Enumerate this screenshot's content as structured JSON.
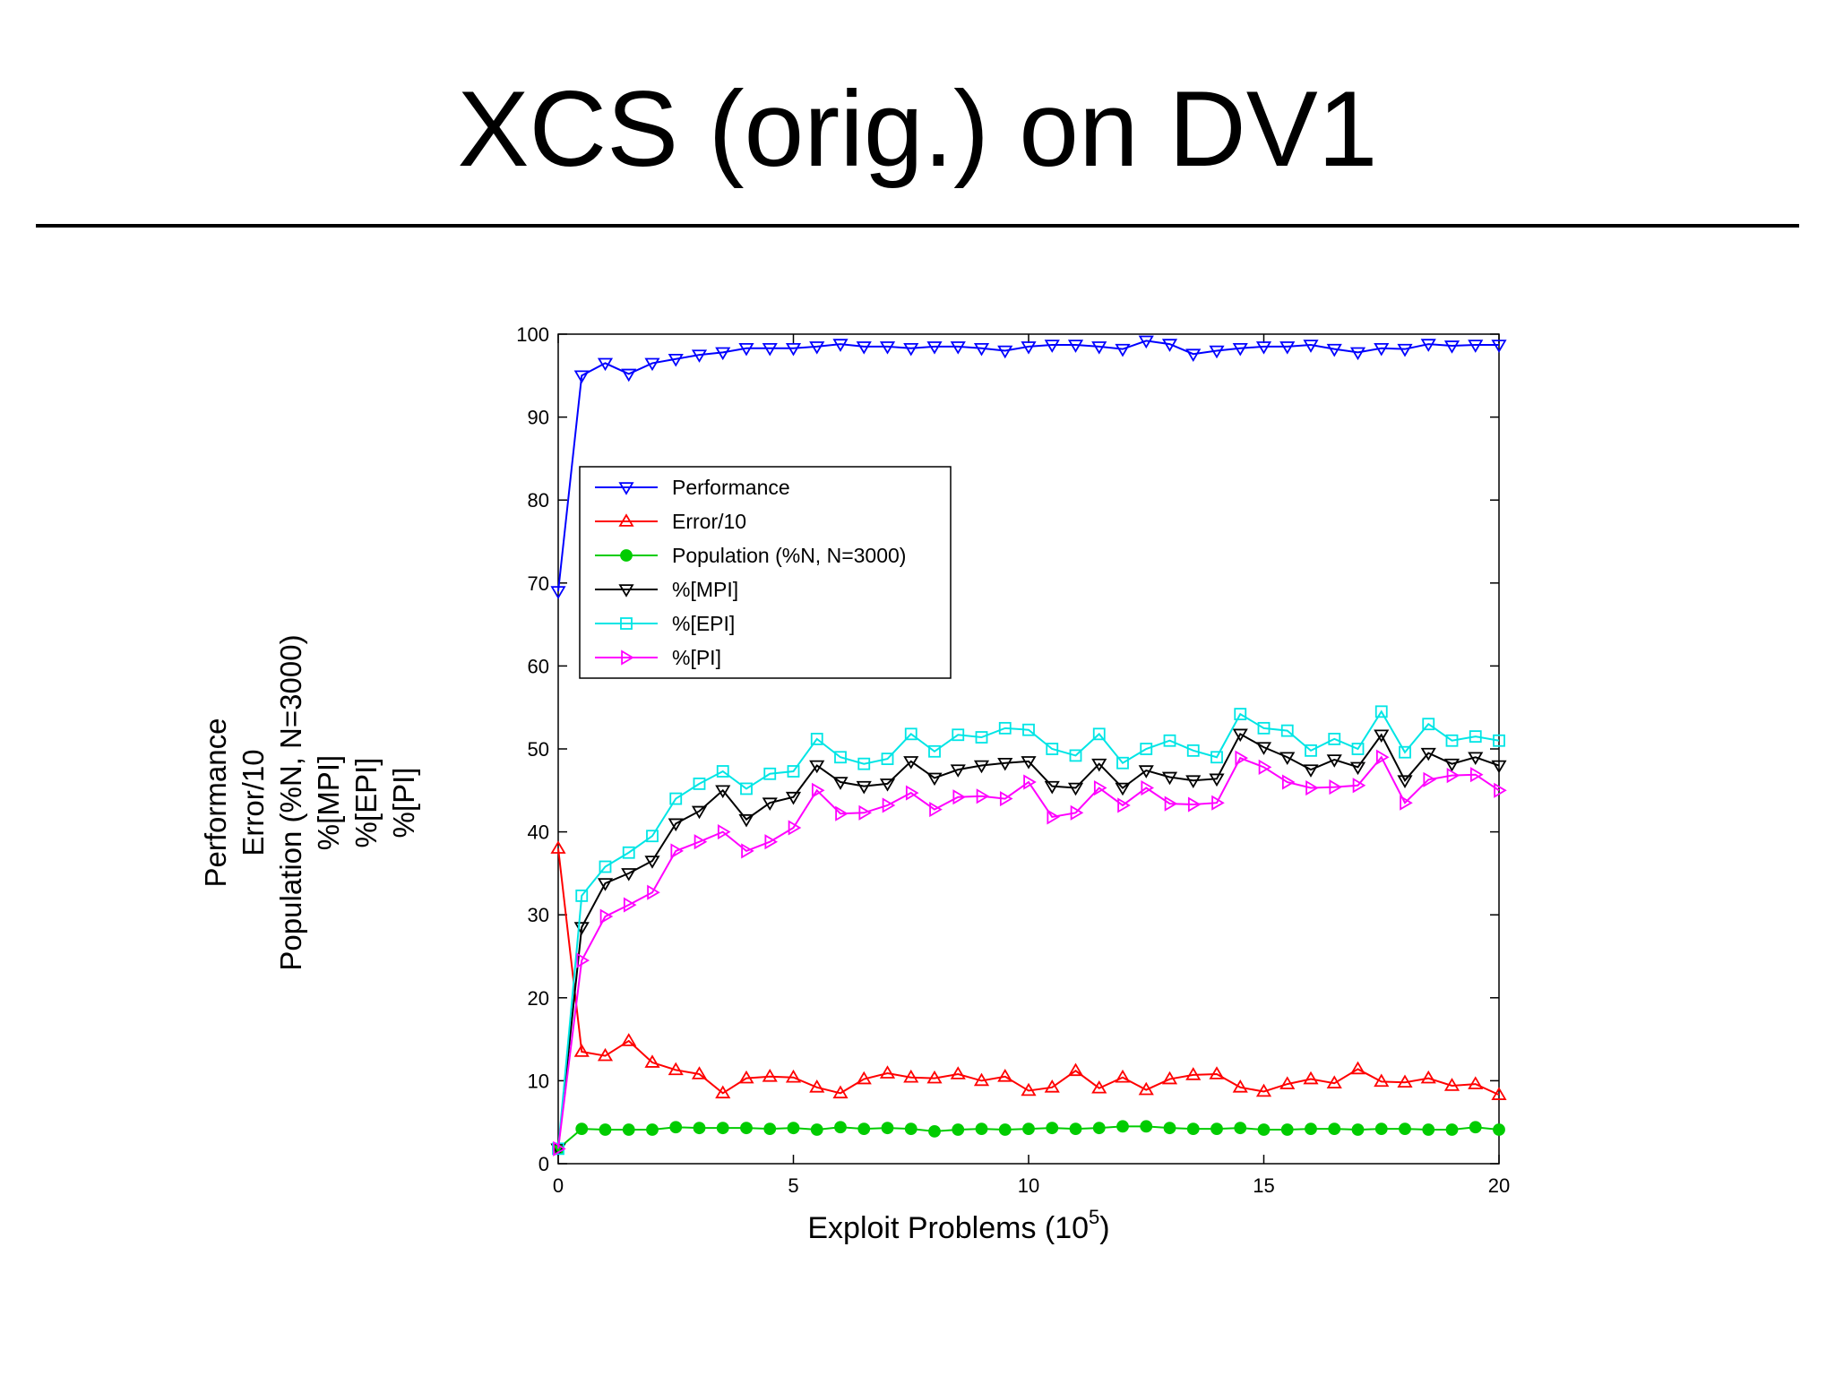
{
  "slide": {
    "title": "XCS (orig.) on DV1"
  },
  "chart_data": {
    "type": "line",
    "xlabel": "Exploit Problems (10",
    "xlabel_sup": "5",
    "xlabel_close": ")",
    "ylabel_lines": [
      "Performance",
      "Error/10",
      "Population (%N, N=3000)",
      "%[MPI]",
      "%[EPI]",
      "%[PI]"
    ],
    "xlim": [
      0,
      20
    ],
    "ylim": [
      0,
      100
    ],
    "xticks": [
      0,
      5,
      10,
      15,
      20
    ],
    "yticks": [
      0,
      10,
      20,
      30,
      40,
      50,
      60,
      70,
      80,
      90,
      100
    ],
    "grid": false,
    "legend_position": "upper-left",
    "x": [
      0,
      0.5,
      1,
      1.5,
      2,
      2.5,
      3,
      3.5,
      4,
      4.5,
      5,
      5.5,
      6,
      6.5,
      7,
      7.5,
      8,
      8.5,
      9,
      9.5,
      10,
      10.5,
      11,
      11.5,
      12,
      12.5,
      13,
      13.5,
      14,
      14.5,
      15,
      15.5,
      16,
      16.5,
      17,
      17.5,
      18,
      18.5,
      19,
      19.5,
      20
    ],
    "series": [
      {
        "name": "Performance",
        "color": "#0000ff",
        "marker": "triangle-down",
        "values": [
          69,
          95,
          96.5,
          95.2,
          96.5,
          97,
          97.5,
          97.8,
          98.3,
          98.3,
          98.3,
          98.5,
          98.8,
          98.5,
          98.5,
          98.3,
          98.5,
          98.5,
          98.3,
          98,
          98.5,
          98.7,
          98.7,
          98.5,
          98.2,
          99.2,
          98.8,
          97.6,
          98,
          98.3,
          98.5,
          98.5,
          98.7,
          98.2,
          97.8,
          98.3,
          98.2,
          98.8,
          98.6,
          98.7,
          98.7
        ]
      },
      {
        "name": "Error/10",
        "color": "#ff0000",
        "marker": "triangle-up",
        "values": [
          38,
          13.5,
          13,
          14.8,
          12.2,
          11.3,
          10.8,
          8.5,
          10.3,
          10.5,
          10.4,
          9.2,
          8.5,
          10.2,
          10.9,
          10.4,
          10.3,
          10.8,
          10,
          10.5,
          8.8,
          9.2,
          11.2,
          9.1,
          10.4,
          8.9,
          10.2,
          10.7,
          10.8,
          9.2,
          8.7,
          9.6,
          10.2,
          9.7,
          11.4,
          9.9,
          9.8,
          10.3,
          9.4,
          9.6,
          8.3
        ]
      },
      {
        "name": "Population (%N, N=3000)",
        "color": "#00cc00",
        "marker": "circle",
        "values": [
          1.8,
          4.2,
          4.1,
          4.1,
          4.1,
          4.4,
          4.3,
          4.3,
          4.3,
          4.2,
          4.3,
          4.1,
          4.4,
          4.2,
          4.3,
          4.2,
          3.9,
          4.1,
          4.2,
          4.1,
          4.2,
          4.3,
          4.2,
          4.3,
          4.5,
          4.5,
          4.3,
          4.2,
          4.2,
          4.3,
          4.1,
          4.1,
          4.2,
          4.2,
          4.1,
          4.2,
          4.2,
          4.1,
          4.1,
          4.4,
          4.1
        ]
      },
      {
        "name": "%[MPI]",
        "color": "#000000",
        "marker": "triangle-down",
        "values": [
          1.8,
          28.5,
          33.8,
          35,
          36.5,
          41,
          42.5,
          45,
          41.5,
          43.5,
          44.2,
          48,
          46,
          45.5,
          45.8,
          48.5,
          46.5,
          47.5,
          48,
          48.3,
          48.5,
          45.5,
          45.3,
          48.2,
          45.3,
          47.4,
          46.6,
          46.2,
          46.4,
          51.8,
          50.2,
          49,
          47.5,
          48.7,
          47.8,
          51.7,
          46.2,
          49.5,
          48.2,
          49,
          48
        ]
      },
      {
        "name": "%[EPI]",
        "color": "#00e5e5",
        "marker": "square",
        "values": [
          1.8,
          32.3,
          35.8,
          37.5,
          39.5,
          44,
          45.8,
          47.3,
          45.2,
          47,
          47.3,
          51.2,
          49,
          48.2,
          48.8,
          51.8,
          49.7,
          51.7,
          51.4,
          52.5,
          52.3,
          50,
          49.2,
          51.8,
          48.3,
          50,
          51,
          49.8,
          49,
          54.2,
          52.5,
          52.2,
          49.8,
          51.2,
          50,
          54.5,
          49.6,
          53,
          51,
          51.5,
          51
        ]
      },
      {
        "name": "%[PI]",
        "color": "#ff00ff",
        "marker": "triangle-right",
        "values": [
          1.8,
          24.5,
          29.8,
          31.2,
          32.7,
          37.7,
          38.8,
          40,
          37.7,
          38.8,
          40.5,
          45,
          42.2,
          42.3,
          43.2,
          44.7,
          42.7,
          44.2,
          44.3,
          44,
          46,
          41.8,
          42.3,
          45.3,
          43.2,
          45.3,
          43.4,
          43.3,
          43.5,
          48.9,
          47.8,
          46,
          45.3,
          45.4,
          45.6,
          49,
          43.5,
          46.3,
          46.8,
          46.9,
          45
        ]
      }
    ]
  }
}
